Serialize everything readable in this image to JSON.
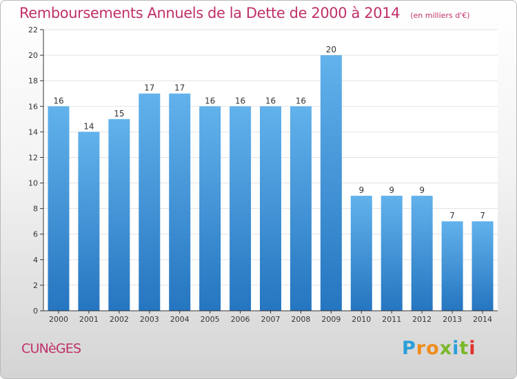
{
  "title": "Remboursements Annuels de la Dette de 2000 à 2014",
  "unit": "(en milliers d'€)",
  "commune": "CUNèGES",
  "logo": {
    "letters": [
      "P",
      "r",
      "o",
      "x",
      "i",
      "t",
      "i"
    ],
    "colors": [
      "#2a9fd8",
      "#f08c1a",
      "#f08c1a",
      "#79b829",
      "#2a9fd8",
      "#79b829",
      "#e3312d"
    ]
  },
  "colors": {
    "title": "#c0306a",
    "bar_light": "#62b2ec",
    "bar_dark": "#2575c0",
    "grid": "#e2e2e2",
    "axis": "#333333"
  },
  "chart_data": {
    "type": "bar",
    "categories": [
      "2000",
      "2001",
      "2002",
      "2003",
      "2004",
      "2005",
      "2006",
      "2007",
      "2008",
      "2009",
      "2010",
      "2011",
      "2012",
      "2013",
      "2014"
    ],
    "values": [
      16,
      14,
      15,
      17,
      17,
      16,
      16,
      16,
      16,
      20,
      9,
      9,
      9,
      7,
      7
    ],
    "yticks": [
      0,
      2,
      4,
      6,
      8,
      10,
      12,
      14,
      16,
      18,
      20,
      22
    ],
    "ylim": [
      0,
      22
    ],
    "grid": true,
    "data_labels": true
  }
}
